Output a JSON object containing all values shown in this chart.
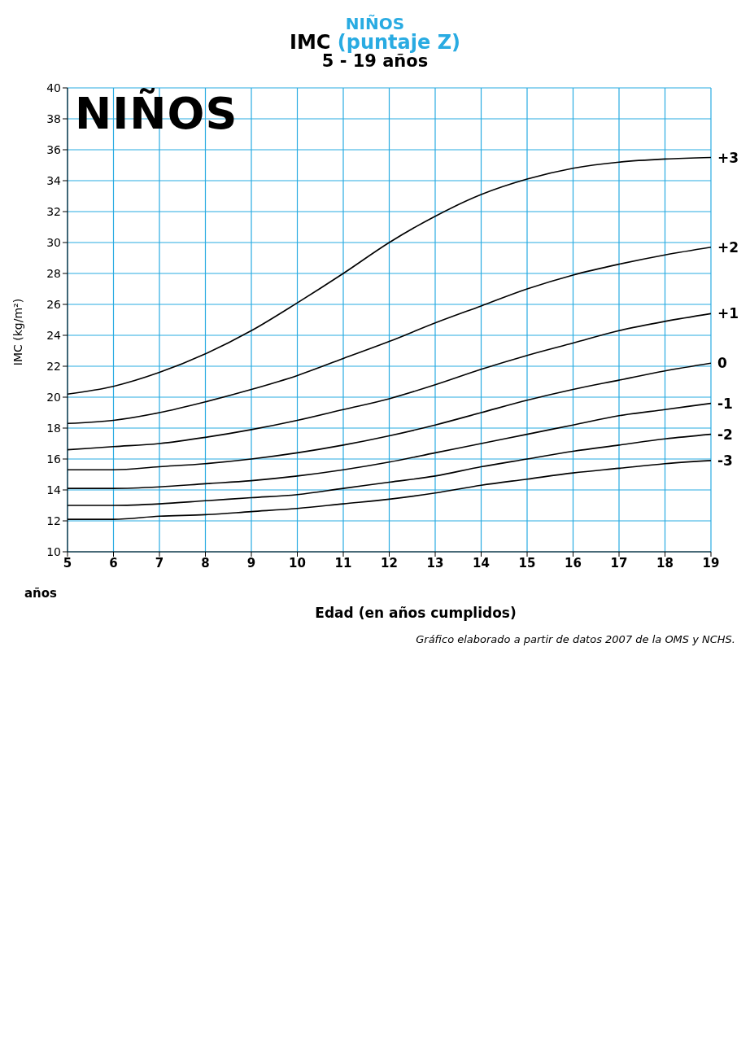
{
  "chart_data": {
    "type": "line",
    "title": "NIÑOS",
    "subtitle": "IMC (puntaje Z)",
    "xlabel": "Edad (en años cumplidos)",
    "ylabel": "IMC (kg/m²)",
    "annotations": [
      "5 - 19 años",
      "NIÑOS",
      "años",
      "Gráfico elaborado a partir de datos 2007 de la OMS y NCHS."
    ],
    "x": [
      5,
      6,
      7,
      8,
      9,
      10,
      11,
      12,
      13,
      14,
      15,
      16,
      17,
      18,
      19
    ],
    "series": [
      {
        "name": "+3",
        "color": "#000000",
        "values": [
          20.2,
          20.7,
          21.6,
          22.8,
          24.3,
          26.1,
          28.0,
          30.0,
          31.7,
          33.1,
          34.1,
          34.8,
          35.2,
          35.4,
          35.5
        ]
      },
      {
        "name": "+2",
        "color": "#000000",
        "values": [
          18.3,
          18.5,
          19.0,
          19.7,
          20.5,
          21.4,
          22.5,
          23.6,
          24.8,
          25.9,
          27.0,
          27.9,
          28.6,
          29.2,
          29.7
        ]
      },
      {
        "name": "+1",
        "color": "#000000",
        "values": [
          16.6,
          16.8,
          17.0,
          17.4,
          17.9,
          18.5,
          19.2,
          19.9,
          20.8,
          21.8,
          22.7,
          23.5,
          24.3,
          24.9,
          25.4
        ]
      },
      {
        "name": "0",
        "color": "#000000",
        "values": [
          15.3,
          15.3,
          15.5,
          15.7,
          16.0,
          16.4,
          16.9,
          17.5,
          18.2,
          19.0,
          19.8,
          20.5,
          21.1,
          21.7,
          22.2
        ]
      },
      {
        "name": "-1",
        "color": "#000000",
        "values": [
          14.1,
          14.1,
          14.2,
          14.4,
          14.6,
          14.9,
          15.3,
          15.8,
          16.4,
          17.0,
          17.6,
          18.2,
          18.8,
          19.2,
          19.6
        ]
      },
      {
        "name": "-2",
        "color": "#000000",
        "values": [
          13.0,
          13.0,
          13.1,
          13.3,
          13.5,
          13.7,
          14.1,
          14.5,
          14.9,
          15.5,
          16.0,
          16.5,
          16.9,
          17.3,
          17.6
        ]
      },
      {
        "name": "-3",
        "color": "#000000",
        "values": [
          12.1,
          12.1,
          12.3,
          12.4,
          12.6,
          12.8,
          13.1,
          13.4,
          13.8,
          14.3,
          14.7,
          15.1,
          15.4,
          15.7,
          15.9
        ]
      }
    ],
    "xlim": [
      5,
      19
    ],
    "xticks": [
      5,
      6,
      7,
      8,
      9,
      10,
      11,
      12,
      13,
      14,
      15,
      16,
      17,
      18,
      19
    ],
    "ylim": [
      10,
      40
    ],
    "yticks": [
      10,
      12,
      14,
      16,
      18,
      20,
      22,
      24,
      26,
      28,
      30,
      32,
      34,
      36,
      38,
      40
    ],
    "grid": true,
    "legend": false,
    "marker": "none",
    "line_style": "solid"
  }
}
